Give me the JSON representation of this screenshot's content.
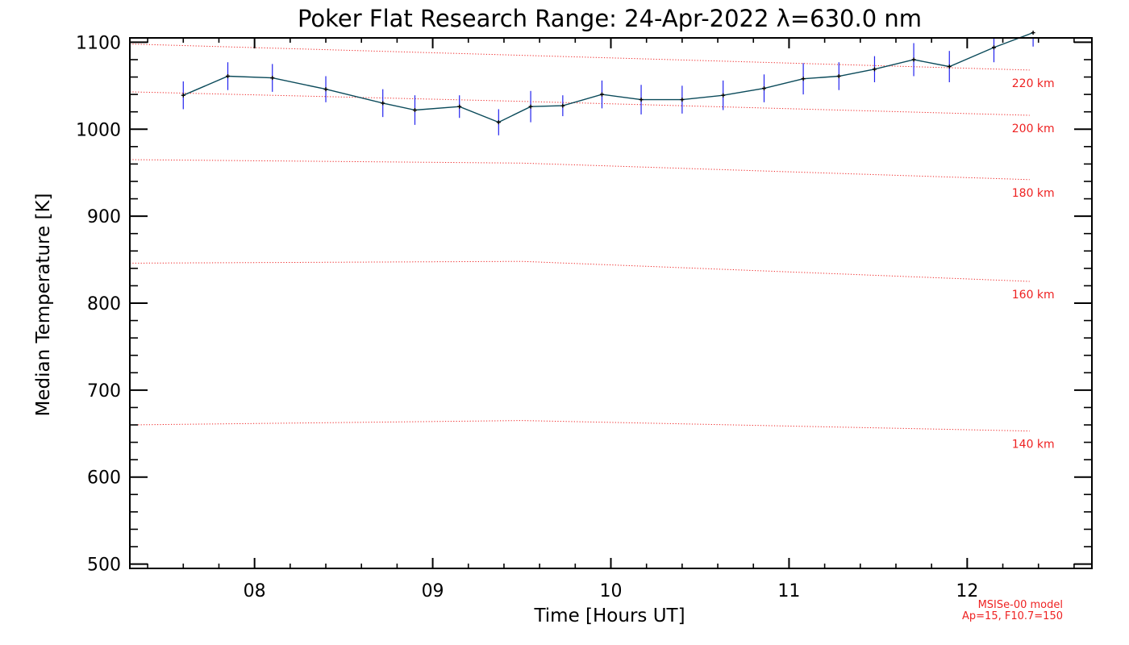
{
  "chart_data": {
    "type": "line",
    "title": "Poker Flat Research Range: 24-Apr-2022 λ=630.0 nm",
    "xlabel": "Time [Hours UT]",
    "ylabel": "Median Temperature [K]",
    "xlim": [
      7.3,
      12.7
    ],
    "ylim": [
      495,
      1105
    ],
    "x_ticks": [
      8,
      9,
      10,
      11,
      12
    ],
    "x_tick_labels": [
      "08",
      "09",
      "10",
      "11",
      "12"
    ],
    "y_ticks": [
      500,
      600,
      700,
      800,
      900,
      1000,
      1100
    ],
    "y_tick_labels": [
      "500",
      "600",
      "700",
      "800",
      "900",
      "1000",
      "1100"
    ],
    "grid": false,
    "series": [
      {
        "color": "#0a4a5a",
        "errorbar_color": "#2222ee",
        "points": [
          {
            "x": 7.6,
            "y": 1039,
            "err": 16
          },
          {
            "x": 7.85,
            "y": 1061,
            "err": 16
          },
          {
            "x": 8.1,
            "y": 1059,
            "err": 16
          },
          {
            "x": 8.4,
            "y": 1046,
            "err": 15
          },
          {
            "x": 8.72,
            "y": 1030,
            "err": 16
          },
          {
            "x": 8.9,
            "y": 1022,
            "err": 17
          },
          {
            "x": 9.15,
            "y": 1026,
            "err": 13
          },
          {
            "x": 9.37,
            "y": 1008,
            "err": 15
          },
          {
            "x": 9.55,
            "y": 1026,
            "err": 18
          },
          {
            "x": 9.73,
            "y": 1027,
            "err": 12
          },
          {
            "x": 9.95,
            "y": 1040,
            "err": 16
          },
          {
            "x": 10.17,
            "y": 1034,
            "err": 17
          },
          {
            "x": 10.4,
            "y": 1034,
            "err": 16
          },
          {
            "x": 10.63,
            "y": 1039,
            "err": 17
          },
          {
            "x": 10.86,
            "y": 1047,
            "err": 16
          },
          {
            "x": 11.08,
            "y": 1058,
            "err": 18
          },
          {
            "x": 11.28,
            "y": 1061,
            "err": 16
          },
          {
            "x": 11.48,
            "y": 1069,
            "err": 15
          },
          {
            "x": 11.7,
            "y": 1080,
            "err": 19
          },
          {
            "x": 11.9,
            "y": 1072,
            "err": 18
          },
          {
            "x": 12.15,
            "y": 1094,
            "err": 17
          },
          {
            "x": 12.37,
            "y": 1111,
            "err": 16
          }
        ]
      }
    ],
    "reference_lines": [
      {
        "label": "220 km",
        "x": [
          7.3,
          9.5,
          12.35
        ],
        "y": [
          1098,
          1085,
          1068
        ]
      },
      {
        "label": "200 km",
        "x": [
          7.3,
          9.5,
          12.35
        ],
        "y": [
          1043,
          1032,
          1016
        ]
      },
      {
        "label": "180 km",
        "x": [
          7.3,
          9.5,
          12.35
        ],
        "y": [
          965,
          961,
          942
        ]
      },
      {
        "label": "160 km",
        "x": [
          7.3,
          9.5,
          12.35
        ],
        "y": [
          846,
          848,
          825
        ]
      },
      {
        "label": "140 km",
        "x": [
          7.3,
          9.5,
          12.35
        ],
        "y": [
          660,
          665,
          653
        ]
      }
    ],
    "reference_color": "#ee2222",
    "annotations": [
      "MSISe-00 model",
      "Ap=15, F10.7=150"
    ]
  }
}
